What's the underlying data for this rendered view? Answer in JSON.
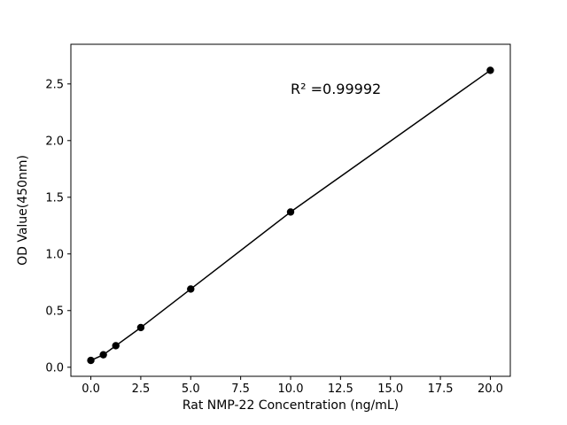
{
  "chart_data": {
    "type": "line",
    "title": "",
    "xlabel": "Rat NMP-22 Concentration (ng/mL)",
    "ylabel": "OD Value(450nm)",
    "annotation": "R² =0.99992",
    "x": [
      0,
      0.625,
      1.25,
      2.5,
      5,
      10,
      20
    ],
    "y": [
      0.06,
      0.11,
      0.19,
      0.35,
      0.69,
      1.37,
      2.62
    ],
    "xlim": [
      -1.0,
      21.0
    ],
    "ylim": [
      -0.08,
      2.85
    ],
    "xticks": [
      0.0,
      2.5,
      5.0,
      7.5,
      10.0,
      12.5,
      15.0,
      17.5,
      20.0
    ],
    "yticks": [
      0.0,
      0.5,
      1.0,
      1.5,
      2.0,
      2.5
    ],
    "grid": false,
    "legend": "none",
    "line_color": "#000000",
    "marker_color": "#000000",
    "background": "#ffffff"
  }
}
